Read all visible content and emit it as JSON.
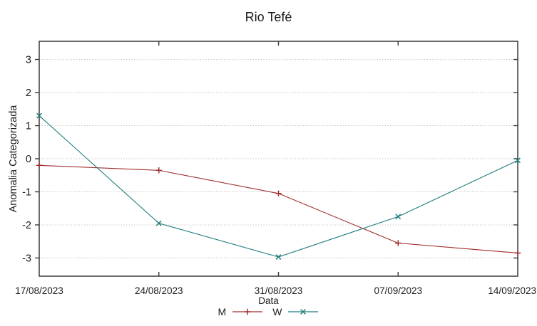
{
  "title": "Rio Tefé",
  "chart_data": {
    "type": "line",
    "title": "Rio Tefé",
    "xlabel": "Data",
    "ylabel": "Anomalia Categorizada",
    "categories": [
      "17/08/2023",
      "24/08/2023",
      "31/08/2023",
      "07/09/2023",
      "14/09/2023"
    ],
    "series": [
      {
        "name": "M",
        "color": "#a02d2d",
        "marker": "plus",
        "values": [
          -0.2,
          -0.35,
          -1.05,
          -2.55,
          -2.85
        ]
      },
      {
        "name": "W",
        "color": "#1e7d7d",
        "marker": "cross",
        "values": [
          1.3,
          -1.95,
          -2.97,
          -1.75,
          -0.05
        ]
      }
    ],
    "yticks": [
      -3,
      -2,
      -1,
      0,
      1,
      2,
      3
    ],
    "ylim": [
      -3.55,
      3.55
    ],
    "grid": "horizontal-dotted",
    "legend_position": "bottom-center"
  },
  "palette": {
    "frame": "#3a3a3a",
    "grid": "#bcbcbc",
    "text": "#1c1c1c",
    "background": "#ffffff"
  }
}
